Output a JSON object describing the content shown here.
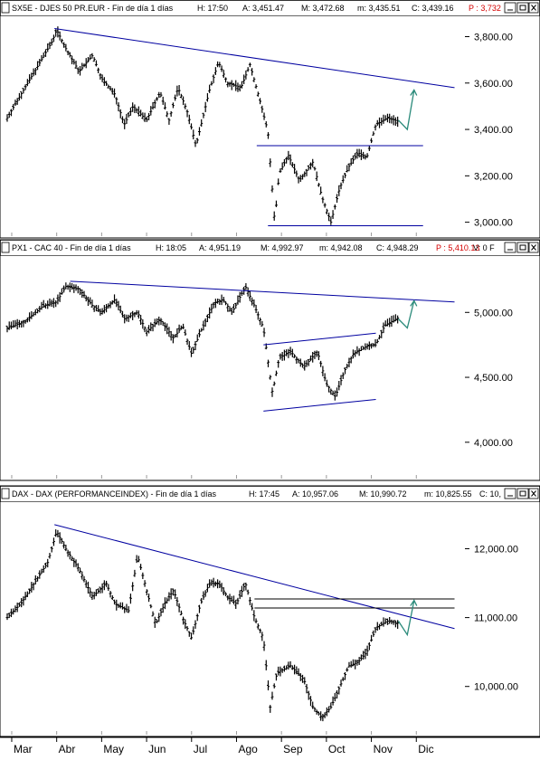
{
  "page": {
    "months": [
      "Mar",
      "Abr",
      "May",
      "Jun",
      "Jul",
      "Ago",
      "Sep",
      "Oct",
      "Nov",
      "Dic"
    ]
  },
  "chart_data": [
    {
      "type": "line",
      "panel": "sx5e",
      "header": {
        "symbol": "SX5E - DJES 50 PR.EUR - Fin de día 1 días",
        "time": "H: 17:50",
        "open": "A: 3,451.47",
        "high": "M: 3,472.68",
        "low": "m: 3,435.51",
        "close": "C: 3,439.16",
        "extra": "P : 3,732"
      },
      "x_range": [
        0,
        10
      ],
      "ylim": [
        2940,
        3880
      ],
      "yticks": [
        3000,
        3200,
        3400,
        3600,
        3800
      ],
      "ytick_labels": [
        "3,000.00",
        "3,200.00",
        "3,400.00",
        "3,600.00",
        "3,800.00"
      ],
      "series": [
        {
          "values": [
            [
              0.0,
              3450
            ],
            [
              0.3,
              3550
            ],
            [
              0.7,
              3680
            ],
            [
              1.0,
              3780
            ],
            [
              1.1,
              3830
            ],
            [
              1.3,
              3750
            ],
            [
              1.6,
              3650
            ],
            [
              1.9,
              3720
            ],
            [
              2.1,
              3620
            ],
            [
              2.4,
              3550
            ],
            [
              2.6,
              3420
            ],
            [
              2.8,
              3500
            ],
            [
              3.1,
              3440
            ],
            [
              3.4,
              3560
            ],
            [
              3.6,
              3440
            ],
            [
              3.8,
              3580
            ],
            [
              4.0,
              3480
            ],
            [
              4.2,
              3330
            ],
            [
              4.5,
              3570
            ],
            [
              4.7,
              3690
            ],
            [
              4.9,
              3600
            ],
            [
              5.2,
              3580
            ],
            [
              5.4,
              3680
            ],
            [
              5.6,
              3540
            ],
            [
              5.8,
              3390
            ],
            [
              5.95,
              3000
            ],
            [
              6.05,
              3210
            ],
            [
              6.25,
              3290
            ],
            [
              6.5,
              3180
            ],
            [
              6.8,
              3260
            ],
            [
              7.0,
              3110
            ],
            [
              7.2,
              3000
            ],
            [
              7.4,
              3150
            ],
            [
              7.6,
              3240
            ],
            [
              7.8,
              3300
            ],
            [
              8.0,
              3280
            ],
            [
              8.2,
              3420
            ],
            [
              8.45,
              3450
            ],
            [
              8.7,
              3435
            ]
          ]
        }
      ],
      "trendlines": [
        [
          [
            1.05,
            3835
          ],
          [
            9.95,
            3580
          ]
        ],
        [
          [
            5.55,
            3330
          ],
          [
            9.25,
            3330
          ]
        ],
        [
          [
            5.8,
            2985
          ],
          [
            9.25,
            2985
          ]
        ]
      ],
      "forecast": [
        [
          8.7,
          3440
        ],
        [
          8.9,
          3400
        ],
        [
          9.05,
          3570
        ]
      ]
    },
    {
      "type": "line",
      "panel": "px1",
      "header": {
        "symbol": "PX1 - CAC 40 - Fin de día 1 días",
        "time": "H: 18:05",
        "open": "A: 4,951.19",
        "high": "M: 4,992.97",
        "low": "m: 4,942.08",
        "close": "C: 4,948.29",
        "extra": "P : 5,410.13",
        "extra2": "V: 0  F"
      },
      "x_range": [
        0,
        10
      ],
      "ylim": [
        3720,
        5420
      ],
      "yticks": [
        4000,
        4500,
        5000
      ],
      "ytick_labels": [
        "4,000.00",
        "4,500.00",
        "5,000.00"
      ],
      "series": [
        {
          "values": [
            [
              0.0,
              4880
            ],
            [
              0.4,
              4930
            ],
            [
              0.8,
              5050
            ],
            [
              1.1,
              5080
            ],
            [
              1.3,
              5200
            ],
            [
              1.6,
              5180
            ],
            [
              1.9,
              5050
            ],
            [
              2.1,
              5000
            ],
            [
              2.4,
              5100
            ],
            [
              2.6,
              4950
            ],
            [
              2.9,
              5000
            ],
            [
              3.1,
              4850
            ],
            [
              3.4,
              4950
            ],
            [
              3.7,
              4800
            ],
            [
              3.9,
              4900
            ],
            [
              4.1,
              4680
            ],
            [
              4.3,
              4850
            ],
            [
              4.6,
              5070
            ],
            [
              4.8,
              5100
            ],
            [
              5.0,
              5000
            ],
            [
              5.3,
              5200
            ],
            [
              5.5,
              5050
            ],
            [
              5.7,
              4880
            ],
            [
              5.9,
              4380
            ],
            [
              6.05,
              4650
            ],
            [
              6.3,
              4700
            ],
            [
              6.6,
              4580
            ],
            [
              6.9,
              4700
            ],
            [
              7.1,
              4450
            ],
            [
              7.3,
              4350
            ],
            [
              7.5,
              4550
            ],
            [
              7.7,
              4680
            ],
            [
              8.0,
              4740
            ],
            [
              8.2,
              4750
            ],
            [
              8.4,
              4900
            ],
            [
              8.7,
              4960
            ]
          ]
        }
      ],
      "trendlines": [
        [
          [
            1.4,
            5240
          ],
          [
            9.95,
            5080
          ]
        ],
        [
          [
            5.7,
            4750
          ],
          [
            8.2,
            4840
          ]
        ],
        [
          [
            5.7,
            4240
          ],
          [
            8.2,
            4330
          ]
        ]
      ],
      "forecast": [
        [
          8.7,
          4950
        ],
        [
          8.9,
          4880
        ],
        [
          9.05,
          5090
        ]
      ]
    },
    {
      "type": "line",
      "panel": "dax",
      "header": {
        "symbol": "DAX - DAX (PERFORMANCEINDEX) - Fin de día 1 días",
        "time": "H: 17:45",
        "open": "A: 10,957.06",
        "high": "M: 10,990.72",
        "low": "m: 10,825.55",
        "close": "C: 10,"
      },
      "x_range": [
        0,
        10
      ],
      "ylim": [
        9300,
        12650
      ],
      "yticks": [
        10000,
        11000,
        12000
      ],
      "ytick_labels": [
        "10,000.00",
        "11,000.00",
        "12,000.00"
      ],
      "series": [
        {
          "values": [
            [
              0.0,
              11000
            ],
            [
              0.3,
              11200
            ],
            [
              0.6,
              11500
            ],
            [
              0.9,
              11800
            ],
            [
              1.1,
              12250
            ],
            [
              1.3,
              12000
            ],
            [
              1.6,
              11700
            ],
            [
              1.9,
              11300
            ],
            [
              2.2,
              11500
            ],
            [
              2.4,
              11200
            ],
            [
              2.7,
              11100
            ],
            [
              2.9,
              11900
            ],
            [
              3.1,
              11400
            ],
            [
              3.3,
              10900
            ],
            [
              3.5,
              11200
            ],
            [
              3.7,
              11400
            ],
            [
              3.9,
              11000
            ],
            [
              4.1,
              10700
            ],
            [
              4.3,
              11200
            ],
            [
              4.5,
              11500
            ],
            [
              4.7,
              11500
            ],
            [
              4.9,
              11300
            ],
            [
              5.1,
              11200
            ],
            [
              5.3,
              11500
            ],
            [
              5.5,
              11000
            ],
            [
              5.7,
              10700
            ],
            [
              5.85,
              9700
            ],
            [
              6.0,
              10200
            ],
            [
              6.3,
              10300
            ],
            [
              6.6,
              10100
            ],
            [
              6.8,
              9700
            ],
            [
              7.0,
              9550
            ],
            [
              7.2,
              9700
            ],
            [
              7.4,
              10000
            ],
            [
              7.6,
              10300
            ],
            [
              7.8,
              10350
            ],
            [
              8.0,
              10500
            ],
            [
              8.2,
              10850
            ],
            [
              8.45,
              10950
            ],
            [
              8.7,
              10920
            ]
          ]
        }
      ],
      "trendlines": [
        [
          [
            1.05,
            12350
          ],
          [
            9.95,
            10840
          ]
        ],
        [
          [
            5.5,
            11270
          ],
          [
            9.95,
            11270
          ]
        ],
        [
          [
            5.5,
            11140
          ],
          [
            9.95,
            11140
          ]
        ]
      ],
      "forecast": [
        [
          8.7,
          10950
        ],
        [
          8.9,
          10750
        ],
        [
          9.05,
          11250
        ]
      ]
    }
  ],
  "colors": {
    "price": "#000000",
    "trendline": "#0000a0",
    "forecast": "#2a8a7a",
    "grid": "#9a9a9a",
    "red_text": "#d40000"
  }
}
